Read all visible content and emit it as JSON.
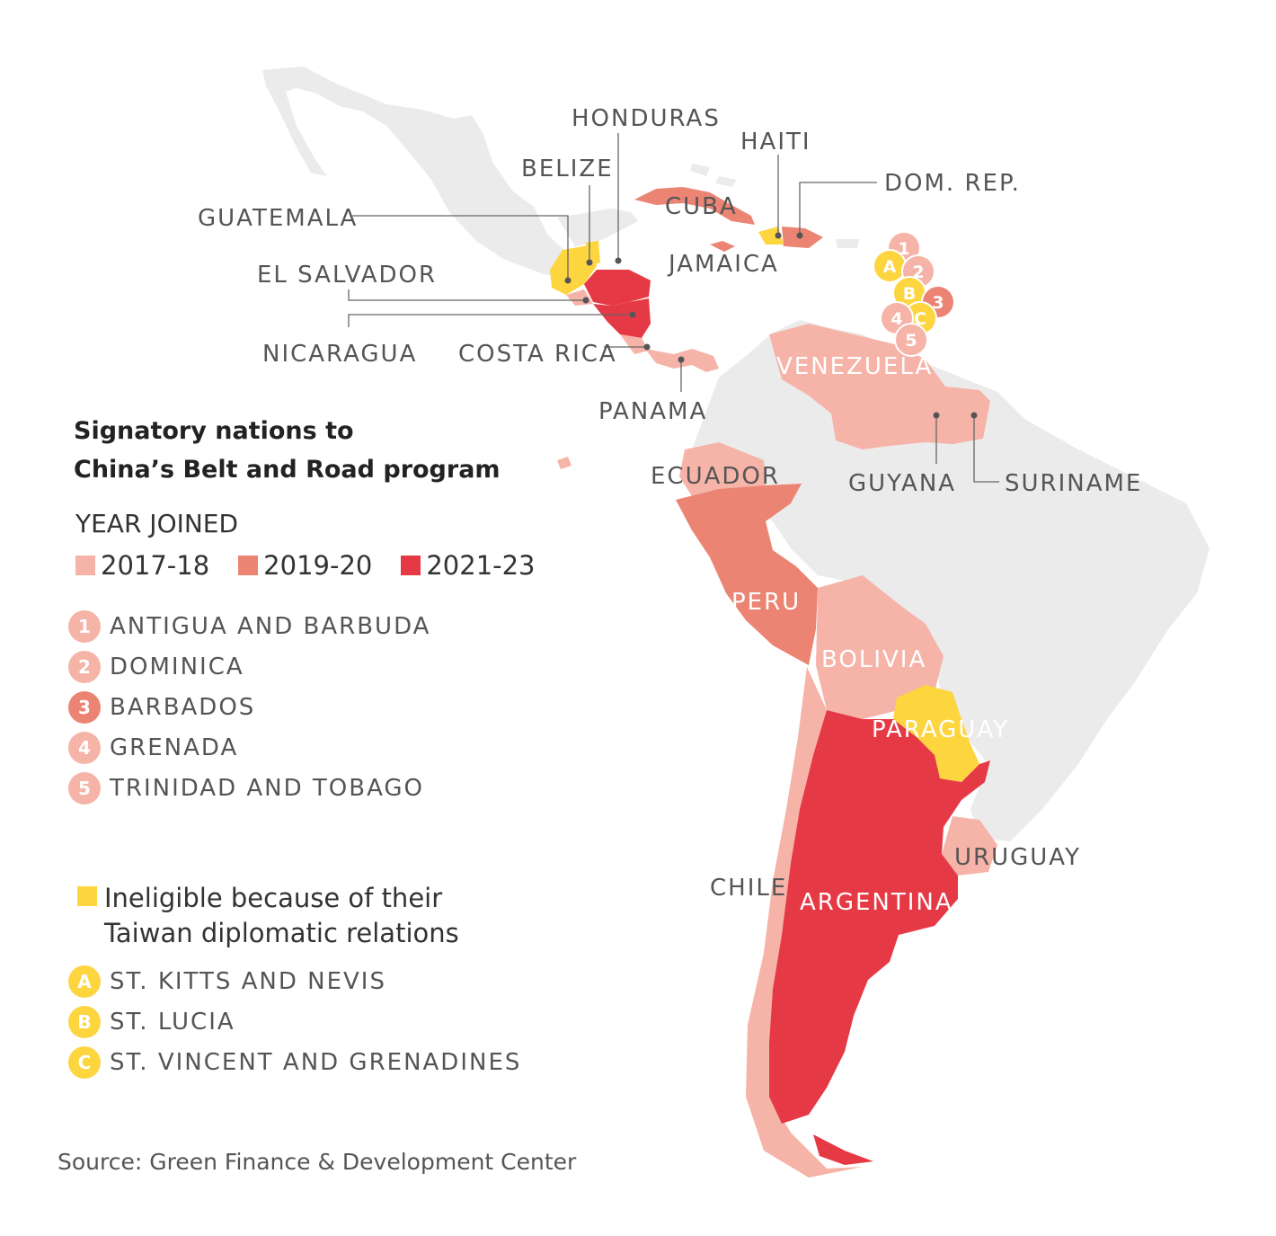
{
  "colors": {
    "background": "#ffffff",
    "land": "#ebebeb",
    "c2017_18": "#f6b3a8",
    "c2019_20": "#ec8474",
    "c2021_23": "#e63946",
    "ineligible": "#fcd53f"
  },
  "legend": {
    "title_line1": "Signatory nations to",
    "title_line2": "China’s Belt and Road program",
    "subtitle": "YEAR JOINED",
    "periods": [
      {
        "label": "2017-18",
        "color": "#f6b3a8"
      },
      {
        "label": "2019-20",
        "color": "#ec8474"
      },
      {
        "label": "2021-23",
        "color": "#e63946"
      }
    ],
    "numbered": [
      {
        "badge": "1",
        "name": "ANTIGUA AND BARBUDA",
        "color": "#f6b3a8"
      },
      {
        "badge": "2",
        "name": "DOMINICA",
        "color": "#f6b3a8"
      },
      {
        "badge": "3",
        "name": "BARBADOS",
        "color": "#ec8474"
      },
      {
        "badge": "4",
        "name": "GRENADA",
        "color": "#f6b3a8"
      },
      {
        "badge": "5",
        "name": "TRINIDAD AND TOBAGO",
        "color": "#f6b3a8"
      }
    ],
    "ineligible_line1": "Ineligible because of their",
    "ineligible_line2": "Taiwan diplomatic relations",
    "lettered": [
      {
        "badge": "A",
        "name": "ST. KITTS AND NEVIS",
        "color": "#fcd53f"
      },
      {
        "badge": "B",
        "name": "ST. LUCIA",
        "color": "#fcd53f"
      },
      {
        "badge": "C",
        "name": "ST. VINCENT AND GRENADINES",
        "color": "#fcd53f"
      }
    ]
  },
  "countries": {
    "honduras": "HONDURAS",
    "haiti": "HAITI",
    "belize": "BELIZE",
    "dom_rep": "DOM. REP.",
    "cuba": "CUBA",
    "guatemala": "GUATEMALA",
    "jamaica": "JAMAICA",
    "el_salvador": "EL SALVADOR",
    "nicaragua": "NICARAGUA",
    "costa_rica": "COSTA RICA",
    "panama": "PANAMA",
    "venezuela": "VENEZUELA",
    "ecuador": "ECUADOR",
    "guyana": "GUYANA",
    "suriname": "SURINAME",
    "peru": "PERU",
    "bolivia": "BOLIVIA",
    "paraguay": "PARAGUAY",
    "uruguay": "URUGUAY",
    "chile": "CHILE",
    "argentina": "ARGENTINA"
  },
  "source": "Source: Green Finance & Development Center"
}
